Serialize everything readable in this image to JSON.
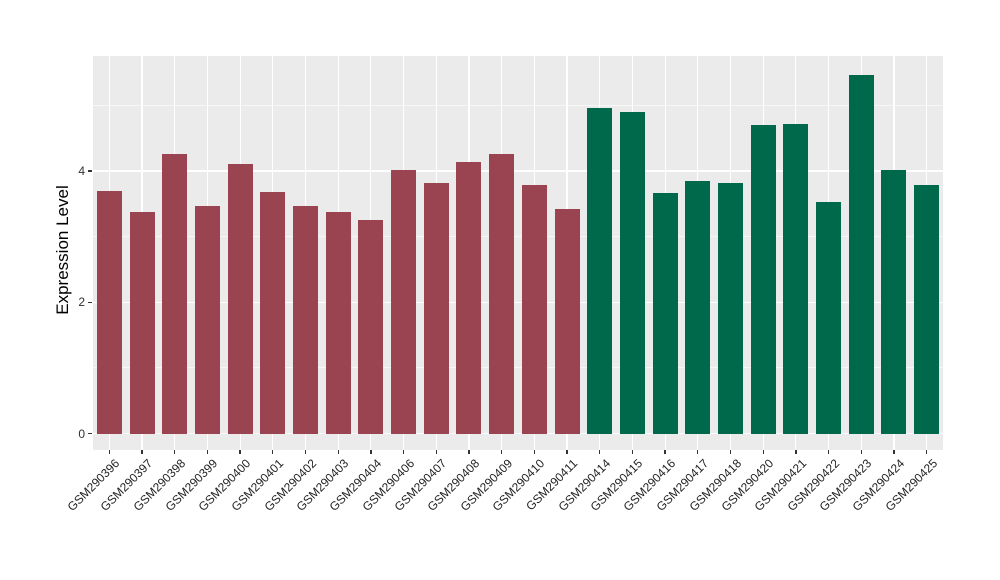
{
  "chart_data": {
    "type": "bar",
    "title": "",
    "xlabel": "",
    "ylabel": "Expression Level",
    "y_ticks": [
      0,
      2,
      4
    ],
    "y_tick_labels": [
      "0",
      "2",
      "4"
    ],
    "y_minor_ticks": [
      1,
      3,
      5
    ],
    "ylim": [
      -0.25,
      5.75
    ],
    "grid": true,
    "legend_position": "none",
    "panel_background": "#EBEBEB",
    "gridline_color": "#FFFFFF",
    "categories": [
      "GSM290396",
      "GSM290397",
      "GSM290398",
      "GSM290399",
      "GSM290400",
      "GSM290401",
      "GSM290402",
      "GSM290403",
      "GSM290404",
      "GSM290406",
      "GSM290407",
      "GSM290408",
      "GSM290409",
      "GSM290410",
      "GSM290411",
      "GSM290414",
      "GSM290415",
      "GSM290416",
      "GSM290417",
      "GSM290418",
      "GSM290420",
      "GSM290421",
      "GSM290422",
      "GSM290423",
      "GSM290424",
      "GSM290425"
    ],
    "values": [
      3.7,
      3.38,
      4.26,
      3.46,
      4.1,
      3.68,
      3.46,
      3.37,
      3.26,
      4.02,
      3.82,
      4.14,
      4.26,
      3.79,
      3.42,
      4.96,
      4.9,
      3.67,
      3.85,
      3.81,
      4.7,
      4.72,
      3.52,
      5.46,
      4.02,
      3.78
    ],
    "groups": [
      "group1",
      "group1",
      "group1",
      "group1",
      "group1",
      "group1",
      "group1",
      "group1",
      "group1",
      "group1",
      "group1",
      "group1",
      "group1",
      "group1",
      "group1",
      "group2",
      "group2",
      "group2",
      "group2",
      "group2",
      "group2",
      "group2",
      "group2",
      "group2",
      "group2",
      "group2"
    ],
    "group_colors": {
      "group1": "#9B4451",
      "group2": "#00694B"
    }
  }
}
